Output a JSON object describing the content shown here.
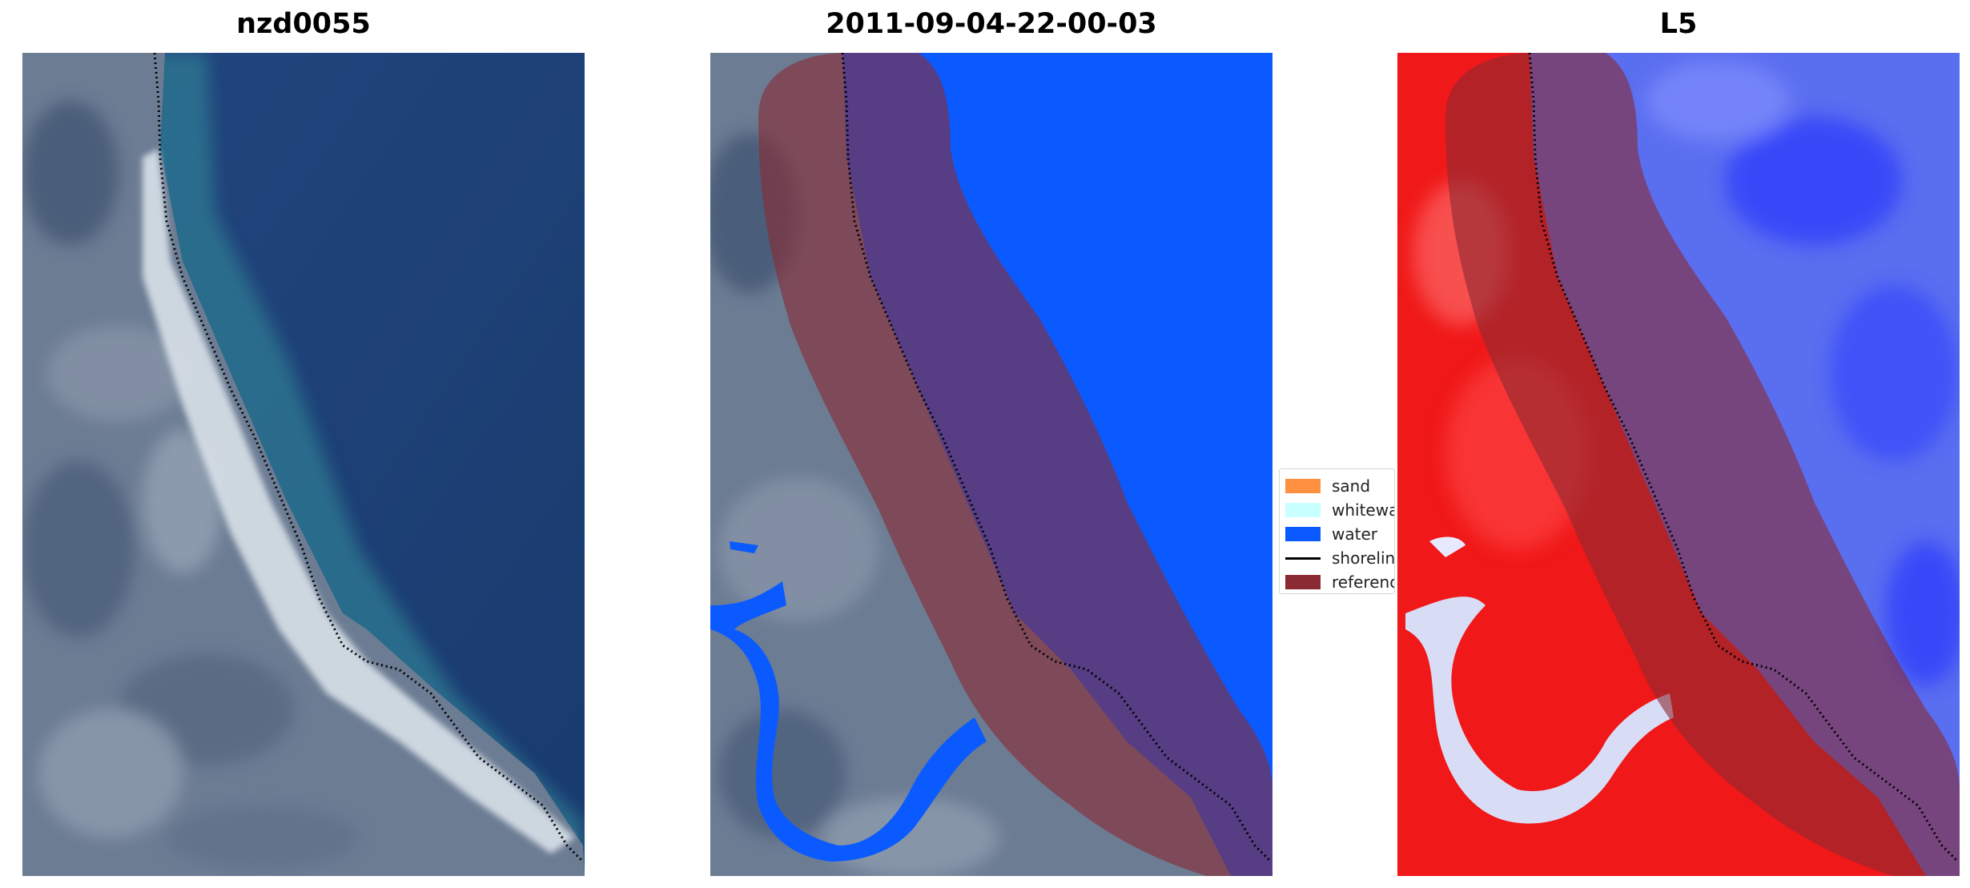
{
  "panels": [
    {
      "title": "nzd0055"
    },
    {
      "title": "2011-09-04-22-00-03"
    },
    {
      "title": "L5"
    }
  ],
  "legend": {
    "items": [
      {
        "label": "sand",
        "color": "#ff9040",
        "kind": "patch"
      },
      {
        "label": "whitewater",
        "color": "#c8ffff",
        "kind": "patch"
      },
      {
        "label": "water",
        "color": "#0a5aff",
        "kind": "patch"
      },
      {
        "label": "shoreline",
        "color": "#000000",
        "kind": "line"
      },
      {
        "label": "reference",
        "color": "#8b2a32",
        "kind": "patch"
      }
    ]
  },
  "colors": {
    "ocean": "#1c3d75",
    "land": "#6f7f95",
    "surf": "#e8eef3",
    "water_class": "#0a5aff",
    "reference_buffer": "#8b2a32",
    "positive": "#ff0000",
    "negative": "#0000ff"
  }
}
